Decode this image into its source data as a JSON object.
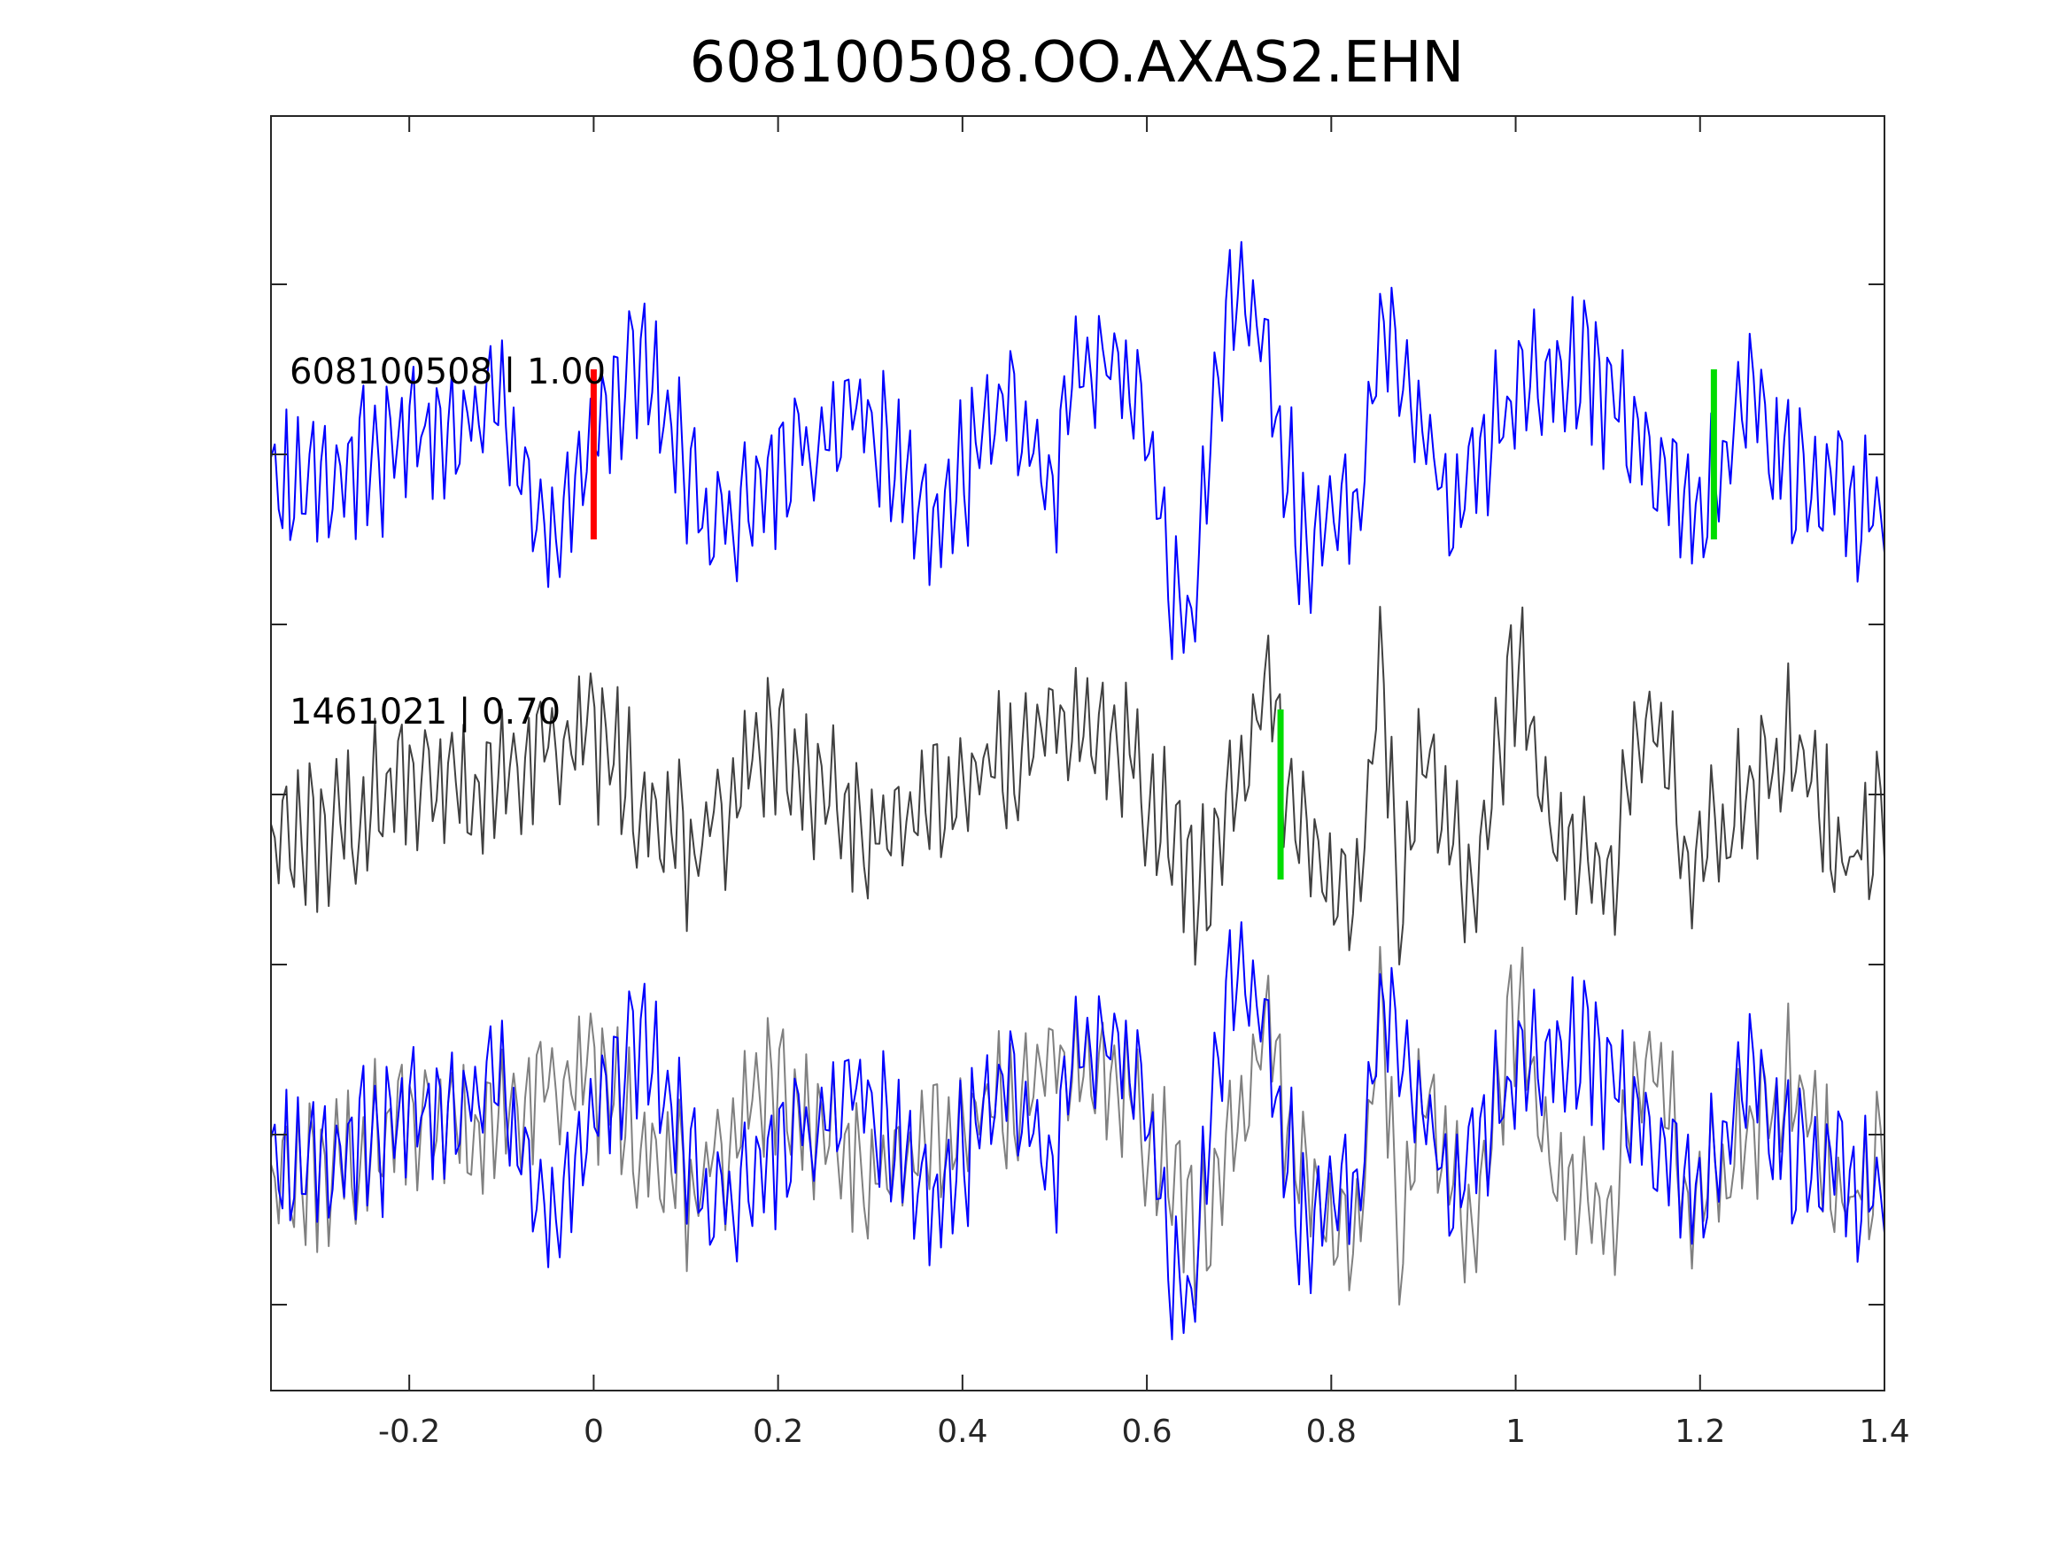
{
  "chart_data": {
    "type": "line",
    "title": "608100508.OO.AXAS2.EHN",
    "xlabel": "",
    "ylabel": "",
    "xlim": [
      -0.35,
      1.4
    ],
    "x_ticks": [
      -0.2,
      0,
      0.2,
      0.4,
      0.6,
      0.8,
      1,
      1.2,
      1.4
    ],
    "x_tick_labels": [
      "-0.2",
      "0",
      "0.2",
      "0.4",
      "0.6",
      "0.8",
      "1",
      "1.2",
      "1.4"
    ],
    "y_ticks_visible_labels": false,
    "grid": false,
    "colors": {
      "master": "#0000ff",
      "template": "#404040",
      "overlay_template": "#808080",
      "p_pick": "#ff0000",
      "s_pick": "#00dd00",
      "axes": "#262626"
    },
    "traces": [
      {
        "label": "608100508 | 1.00",
        "series": "608100508",
        "cc": "1.00",
        "color": "master",
        "picks": [
          {
            "phase": "P",
            "t": 0.0,
            "color": "p_pick"
          },
          {
            "phase": "S",
            "t": 1.215,
            "color": "s_pick"
          }
        ],
        "key_points": [
          [
            -0.35,
            -0.3
          ],
          [
            -0.1,
            0.3
          ],
          [
            -0.05,
            -0.6
          ],
          [
            0.0,
            0.2
          ],
          [
            0.06,
            0.6
          ],
          [
            0.13,
            -0.55
          ],
          [
            0.28,
            0.35
          ],
          [
            0.37,
            -0.5
          ],
          [
            0.45,
            0.4
          ],
          [
            0.5,
            -0.3
          ],
          [
            0.52,
            0.65
          ],
          [
            0.56,
            0.75
          ],
          [
            0.6,
            0.2
          ],
          [
            0.63,
            -1.05
          ],
          [
            0.648,
            -1.1
          ],
          [
            0.665,
            -0.2
          ],
          [
            0.69,
            1.2
          ],
          [
            0.72,
            0.8
          ],
          [
            0.75,
            0.05
          ],
          [
            0.77,
            -0.65
          ],
          [
            0.83,
            -0.3
          ],
          [
            0.85,
            0.7
          ],
          [
            0.88,
            0.6
          ],
          [
            0.93,
            -0.35
          ],
          [
            1.0,
            0.45
          ],
          [
            1.07,
            0.65
          ],
          [
            1.2,
            -0.45
          ],
          [
            1.25,
            0.35
          ],
          [
            1.3,
            -0.2
          ],
          [
            1.4,
            -0.35
          ]
        ]
      },
      {
        "label": "1461021 | 0.70",
        "series": "1461021",
        "cc": "0.70",
        "color": "template",
        "picks": [
          {
            "phase": "S",
            "t": 0.745,
            "color": "s_pick"
          }
        ],
        "key_points": [
          [
            -0.35,
            -0.3
          ],
          [
            0.0,
            0.4
          ],
          [
            0.1,
            -0.4
          ],
          [
            0.2,
            0.4
          ],
          [
            0.3,
            -0.3
          ],
          [
            0.4,
            0.1
          ],
          [
            0.5,
            0.5
          ],
          [
            0.55,
            0.6
          ],
          [
            0.62,
            -0.2
          ],
          [
            0.66,
            -0.7
          ],
          [
            0.7,
            0.1
          ],
          [
            0.73,
            0.8
          ],
          [
            0.76,
            -0.2
          ],
          [
            0.79,
            -0.6
          ],
          [
            0.83,
            -0.7
          ],
          [
            0.853,
            1.1
          ],
          [
            0.875,
            -0.9
          ],
          [
            0.9,
            0.5
          ],
          [
            0.95,
            -0.8
          ],
          [
            1.0,
            0.95
          ],
          [
            1.05,
            -0.5
          ],
          [
            1.1,
            -0.65
          ],
          [
            1.15,
            0.7
          ],
          [
            1.19,
            -0.6
          ],
          [
            1.3,
            0.4
          ],
          [
            1.35,
            -0.4
          ],
          [
            1.4,
            -0.2
          ]
        ]
      },
      {
        "label": "",
        "series": "overlay",
        "color": "master",
        "overlay_of": [
          "608100508",
          "1461021"
        ],
        "picks": []
      }
    ]
  }
}
